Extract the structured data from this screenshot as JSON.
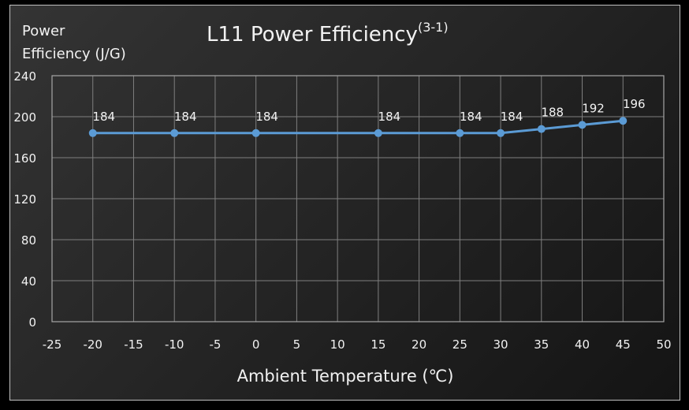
{
  "chart_data": {
    "type": "line",
    "title": "L11 Power Efficiency",
    "title_superscript": "(3-1)",
    "ylabel_line1": "Power",
    "ylabel_line2": "Efficiency (J/G)",
    "xlabel": "Ambient Temperature (℃)",
    "x": [
      -20,
      -10,
      0,
      15,
      25,
      30,
      35,
      40,
      45
    ],
    "series": [
      {
        "name": "Power Efficiency",
        "values": [
          184,
          184,
          184,
          184,
          184,
          184,
          188,
          192,
          196
        ],
        "color": "#5b9bd5"
      }
    ],
    "data_labels": [
      "184",
      "184",
      "184",
      "184",
      "184",
      "184",
      "188",
      "192",
      "196"
    ],
    "xlim": [
      -25,
      50
    ],
    "ylim": [
      0,
      240
    ],
    "xticks": [
      "-25",
      "-20",
      "-15",
      "-10",
      "-5",
      "0",
      "5",
      "10",
      "15",
      "20",
      "25",
      "30",
      "35",
      "40",
      "45",
      "50"
    ],
    "yticks": [
      "0",
      "40",
      "80",
      "120",
      "160",
      "200",
      "240"
    ],
    "grid": true,
    "legend": "none"
  },
  "colors": {
    "background": "#262626",
    "line": "#5b9bd5",
    "grid": "#7f7f7f",
    "text": "#f2f2f2"
  }
}
